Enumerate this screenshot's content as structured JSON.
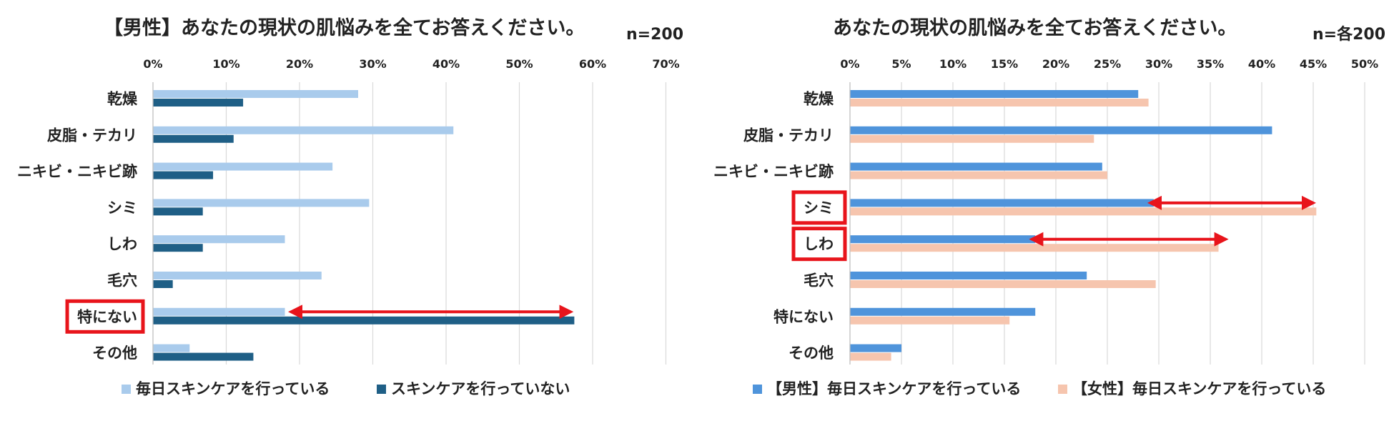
{
  "chart_data": [
    {
      "type": "bar",
      "orientation": "horizontal",
      "title": "【男性】あなたの現状の肌悩みを全てお答えください。",
      "note": "n=200",
      "categories": [
        "乾燥",
        "皮脂・テカリ",
        "ニキビ・ニキビ跡",
        "シミ",
        "しわ",
        "毛穴",
        "特にない",
        "その他"
      ],
      "xlim": [
        0,
        70
      ],
      "xticks": [
        "0%",
        "10%",
        "20%",
        "30%",
        "40%",
        "50%",
        "60%",
        "70%"
      ],
      "grid": true,
      "legend_position": "bottom",
      "series": [
        {
          "name": "毎日スキンケアを行っている",
          "color": "#A9CBEC",
          "values": [
            28,
            41,
            24.5,
            29.5,
            18,
            23,
            18,
            5
          ]
        },
        {
          "name": "スキンケアを行っていない",
          "color": "#1F5F86",
          "values": [
            12.3,
            11,
            8.2,
            6.8,
            6.8,
            2.7,
            57.5,
            13.7
          ]
        }
      ],
      "highlight": [
        "特にない"
      ],
      "arrows": [
        {
          "category": "特にない",
          "from": 20,
          "to": 57
        }
      ]
    },
    {
      "type": "bar",
      "orientation": "horizontal",
      "title": "あなたの現状の肌悩みを全てお答えください。",
      "note": "n=各200",
      "categories": [
        "乾燥",
        "皮脂・テカリ",
        "ニキビ・ニキビ跡",
        "シミ",
        "しわ",
        "毛穴",
        "特にない",
        "その他"
      ],
      "xlim": [
        0,
        50
      ],
      "xticks": [
        "0%",
        "5%",
        "10%",
        "15%",
        "20%",
        "25%",
        "30%",
        "35%",
        "40%",
        "45%",
        "50%"
      ],
      "grid": true,
      "legend_position": "bottom",
      "series": [
        {
          "name": "【男性】毎日スキンケアを行っている",
          "color": "#4F94DB",
          "values": [
            28,
            41,
            24.5,
            29.5,
            18,
            23,
            18,
            5
          ]
        },
        {
          "name": "【女性】毎日スキンケアを行っている",
          "color": "#F6C5AE",
          "values": [
            29,
            23.7,
            25,
            45.3,
            35.8,
            29.7,
            15.5,
            4
          ]
        }
      ],
      "highlight": [
        "シミ",
        "しわ"
      ],
      "arrows": [
        {
          "category": "シミ",
          "from": 30,
          "to": 45
        },
        {
          "category": "しわ",
          "from": 18.5,
          "to": 36.5
        }
      ]
    }
  ],
  "colors": {
    "highlight_border": "#E8141B",
    "arrow": "#E8141B",
    "gridline": "#D9D9D9"
  }
}
